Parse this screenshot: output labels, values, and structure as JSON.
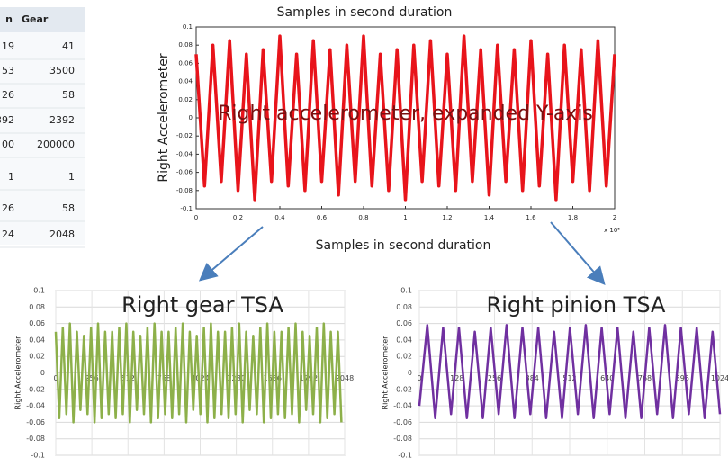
{
  "table": {
    "header": [
      "n",
      "Gear"
    ],
    "rows": [
      [
        "19",
        "41"
      ],
      [
        "53",
        "3500"
      ],
      [
        "26",
        "58"
      ],
      [
        "392",
        "2392"
      ],
      [
        "00",
        "200000"
      ],
      [
        "1",
        "1"
      ],
      [
        "26",
        "58"
      ],
      [
        "24",
        "2048"
      ]
    ]
  },
  "chart_data": [
    {
      "type": "line",
      "title": "Samples in second duration",
      "xlabel": "Samples in second duration",
      "ylabel": "Right Accelerometer",
      "annotation": "Right accelerometer, expanded Y-axis",
      "x_multiplier": "x 10⁵",
      "color": "#e8141b",
      "grid": false,
      "xlim": [
        0,
        2
      ],
      "xticks": [
        0,
        0.2,
        0.4,
        0.6,
        0.8,
        1,
        1.2,
        1.4,
        1.6,
        1.8,
        2
      ],
      "ylim": [
        -0.1,
        0.1
      ],
      "yticks": [
        0.1,
        0.08,
        0.06,
        0.04,
        0.02,
        0,
        -0.02,
        -0.04,
        -0.06,
        -0.08,
        -0.1
      ],
      "x": [
        0,
        0.04,
        0.08,
        0.12,
        0.16,
        0.2,
        0.24,
        0.28,
        0.32,
        0.36,
        0.4,
        0.44,
        0.48,
        0.52,
        0.56,
        0.6,
        0.64,
        0.68,
        0.72,
        0.76,
        0.8,
        0.84,
        0.88,
        0.92,
        0.96,
        1,
        1.04,
        1.08,
        1.12,
        1.16,
        1.2,
        1.24,
        1.28,
        1.32,
        1.36,
        1.4,
        1.44,
        1.48,
        1.52,
        1.56,
        1.6,
        1.64,
        1.68,
        1.72,
        1.76,
        1.8,
        1.84,
        1.88,
        1.92,
        1.96,
        2
      ],
      "values": [
        0.07,
        -0.075,
        0.08,
        -0.07,
        0.085,
        -0.08,
        0.07,
        -0.09,
        0.075,
        -0.07,
        0.09,
        -0.075,
        0.07,
        -0.08,
        0.085,
        -0.07,
        0.075,
        -0.085,
        0.08,
        -0.07,
        0.09,
        -0.075,
        0.07,
        -0.08,
        0.075,
        -0.09,
        0.08,
        -0.07,
        0.085,
        -0.075,
        0.07,
        -0.08,
        0.09,
        -0.07,
        0.075,
        -0.085,
        0.08,
        -0.07,
        0.075,
        -0.08,
        0.085,
        -0.075,
        0.07,
        -0.09,
        0.08,
        -0.07,
        0.075,
        -0.08,
        0.085,
        -0.075,
        0.07
      ]
    },
    {
      "type": "line",
      "title": "Right gear TSA",
      "ylabel": "Right Accelerometer",
      "color": "#8db04a",
      "grid": true,
      "xlim": [
        0,
        2048
      ],
      "xticks": [
        0,
        256,
        512,
        768,
        1024,
        1280,
        1536,
        1792,
        2048
      ],
      "ylim": [
        -0.1,
        0.1
      ],
      "yticks": [
        0.1,
        0.08,
        0.06,
        0.04,
        0.02,
        0,
        -0.02,
        -0.04,
        -0.06,
        -0.08,
        -0.1
      ],
      "x": [
        0,
        25,
        50,
        75,
        100,
        125,
        150,
        175,
        200,
        225,
        250,
        275,
        300,
        325,
        350,
        375,
        400,
        425,
        450,
        475,
        500,
        525,
        550,
        575,
        600,
        625,
        650,
        675,
        700,
        725,
        750,
        775,
        800,
        825,
        850,
        875,
        900,
        925,
        950,
        975,
        1000,
        1025,
        1050,
        1075,
        1100,
        1125,
        1150,
        1175,
        1200,
        1225,
        1250,
        1275,
        1300,
        1325,
        1350,
        1375,
        1400,
        1425,
        1450,
        1475,
        1500,
        1525,
        1550,
        1575,
        1600,
        1625,
        1650,
        1675,
        1700,
        1725,
        1750,
        1775,
        1800,
        1825,
        1850,
        1875,
        1900,
        1925,
        1950,
        1975,
        2000,
        2025
      ],
      "values": [
        0.05,
        -0.055,
        0.055,
        -0.05,
        0.06,
        -0.06,
        0.05,
        -0.045,
        0.045,
        -0.05,
        0.055,
        -0.06,
        0.06,
        -0.055,
        0.05,
        -0.05,
        0.05,
        -0.055,
        0.055,
        -0.05,
        0.06,
        -0.06,
        0.05,
        -0.045,
        0.045,
        -0.05,
        0.055,
        -0.06,
        0.06,
        -0.055,
        0.05,
        -0.05,
        0.05,
        -0.055,
        0.055,
        -0.05,
        0.06,
        -0.06,
        0.05,
        -0.045,
        0.045,
        -0.05,
        0.055,
        -0.06,
        0.06,
        -0.055,
        0.05,
        -0.05,
        0.05,
        -0.055,
        0.055,
        -0.05,
        0.06,
        -0.06,
        0.05,
        -0.045,
        0.045,
        -0.05,
        0.055,
        -0.06,
        0.06,
        -0.055,
        0.05,
        -0.05,
        0.05,
        -0.055,
        0.055,
        -0.05,
        0.06,
        -0.06,
        0.05,
        -0.045,
        0.045,
        -0.05,
        0.055,
        -0.06,
        0.06,
        -0.055,
        0.05,
        -0.05,
        0.05,
        -0.06
      ]
    },
    {
      "type": "line",
      "title": "Right pinion TSA",
      "ylabel": "Right Accelerometer",
      "color": "#7030a0",
      "grid": true,
      "xlim": [
        0,
        1024
      ],
      "xticks": [
        0,
        128,
        256,
        384,
        512,
        640,
        768,
        896,
        1024
      ],
      "ylim": [
        -0.1,
        0.1
      ],
      "yticks": [
        0.1,
        0.08,
        0.06,
        0.04,
        0.02,
        0,
        -0.02,
        -0.04,
        -0.06,
        -0.08,
        -0.1
      ],
      "x": [
        0,
        27,
        54,
        81,
        108,
        135,
        162,
        189,
        216,
        243,
        270,
        297,
        324,
        351,
        378,
        405,
        432,
        459,
        486,
        513,
        540,
        567,
        594,
        621,
        648,
        675,
        702,
        729,
        756,
        783,
        810,
        837,
        864,
        891,
        918,
        945,
        972,
        999,
        1024
      ],
      "values": [
        -0.04,
        0.058,
        -0.055,
        0.055,
        -0.05,
        0.055,
        -0.055,
        0.05,
        -0.055,
        0.055,
        -0.05,
        0.058,
        -0.055,
        0.055,
        -0.05,
        0.055,
        -0.055,
        0.05,
        -0.055,
        0.055,
        -0.05,
        0.058,
        -0.055,
        0.055,
        -0.05,
        0.055,
        -0.055,
        0.05,
        -0.055,
        0.055,
        -0.05,
        0.058,
        -0.055,
        0.055,
        -0.05,
        0.055,
        -0.055,
        0.05,
        -0.05
      ]
    }
  ]
}
